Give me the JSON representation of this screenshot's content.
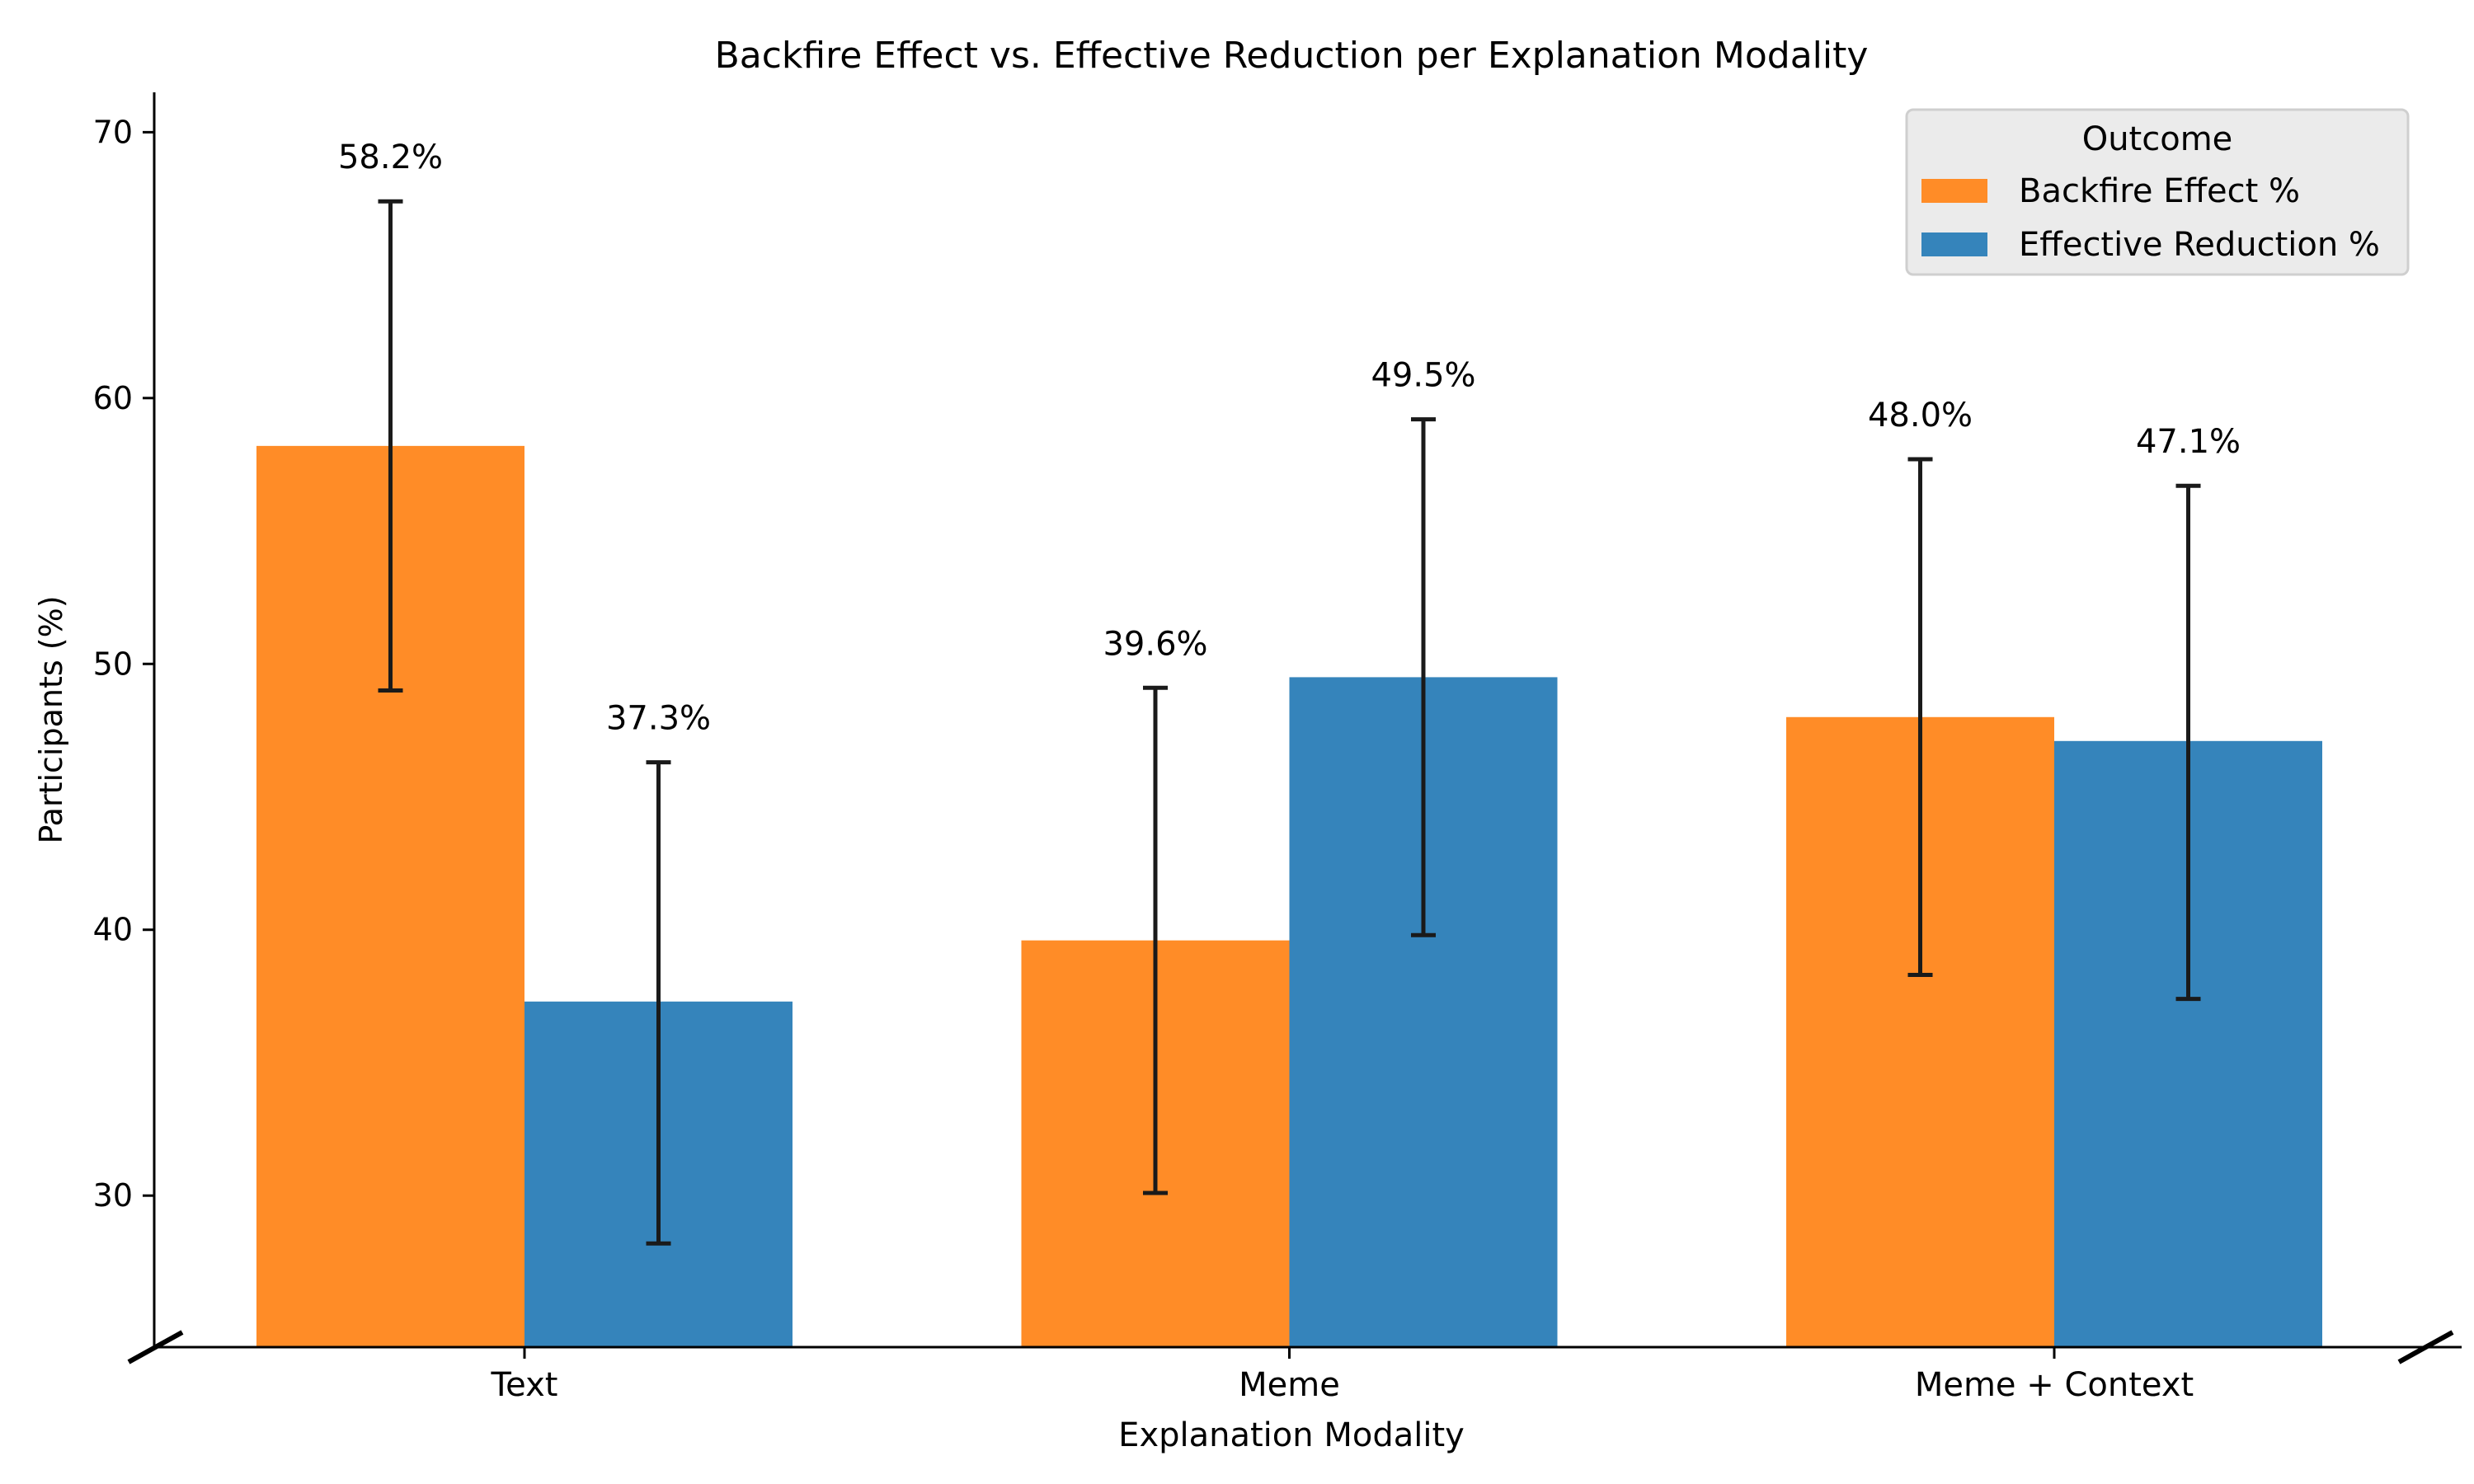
{
  "chart_data": {
    "type": "bar",
    "title": "Backfire Effect vs. Effective Reduction per Explanation Modality",
    "xlabel": "Explanation Modality",
    "ylabel": "Participants (%)",
    "categories": [
      "Text",
      "Meme",
      "Meme + Context"
    ],
    "ylim": [
      24.3,
      71.5
    ],
    "yticks": [
      30,
      40,
      50,
      60,
      70
    ],
    "grid": false,
    "legend": {
      "title": "Outcome",
      "placement": "top-right"
    },
    "series": [
      {
        "name": "Backfire Effect %",
        "color": "#ff8c27",
        "values": [
          58.2,
          39.6,
          48.0
        ],
        "error_low": [
          49.0,
          30.1,
          38.3
        ],
        "error_high": [
          67.4,
          49.1,
          57.7
        ],
        "value_labels": [
          "58.2%",
          "39.6%",
          "48.0%"
        ]
      },
      {
        "name": "Effective Reduction %",
        "color": "#3584bb",
        "values": [
          37.3,
          49.5,
          47.1
        ],
        "error_low": [
          28.2,
          39.8,
          37.4
        ],
        "error_high": [
          46.3,
          59.2,
          56.7
        ],
        "value_labels": [
          "37.3%",
          "49.5%",
          "47.1%"
        ]
      }
    ]
  }
}
